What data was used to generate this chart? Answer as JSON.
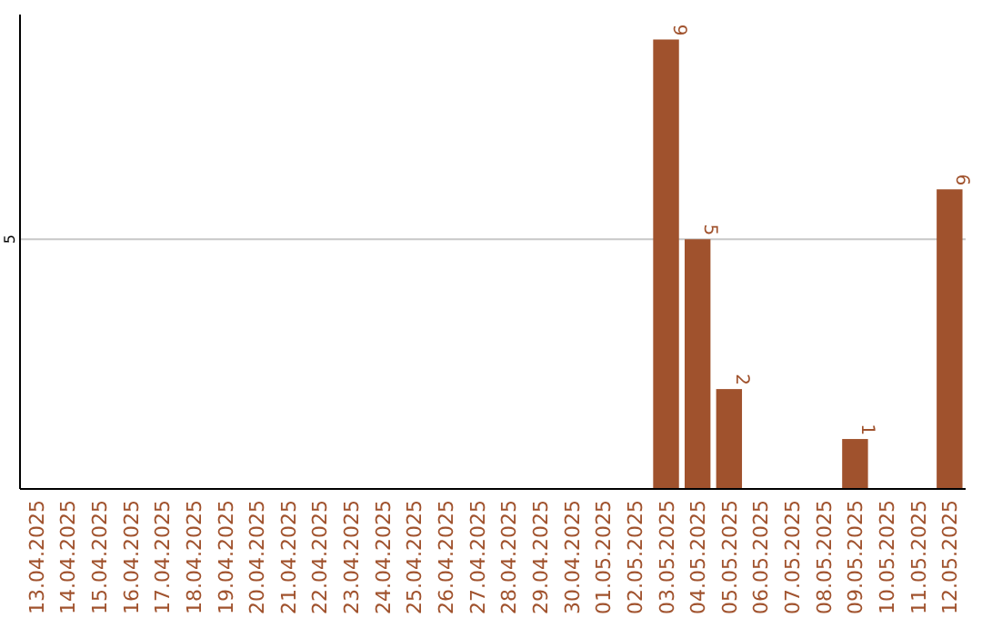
{
  "chart_data": {
    "type": "bar",
    "categories": [
      "13.04.2025",
      "14.04.2025",
      "15.04.2025",
      "16.04.2025",
      "17.04.2025",
      "18.04.2025",
      "19.04.2025",
      "20.04.2025",
      "21.04.2025",
      "22.04.2025",
      "23.04.2025",
      "24.04.2025",
      "25.04.2025",
      "26.04.2025",
      "27.04.2025",
      "28.04.2025",
      "29.04.2025",
      "30.04.2025",
      "01.05.2025",
      "02.05.2025",
      "03.05.2025",
      "04.05.2025",
      "05.05.2025",
      "06.05.2025",
      "07.05.2025",
      "08.05.2025",
      "09.05.2025",
      "10.05.2025",
      "11.05.2025",
      "12.05.2025"
    ],
    "values": [
      null,
      null,
      null,
      null,
      null,
      null,
      null,
      null,
      null,
      null,
      null,
      null,
      null,
      null,
      null,
      null,
      null,
      null,
      null,
      null,
      9,
      5,
      2,
      null,
      null,
      null,
      1,
      null,
      null,
      6
    ],
    "data_labels": true,
    "color": "#a0522d",
    "ylim": [
      0,
      9.5
    ],
    "yticks": [
      5
    ],
    "grid": "y"
  }
}
